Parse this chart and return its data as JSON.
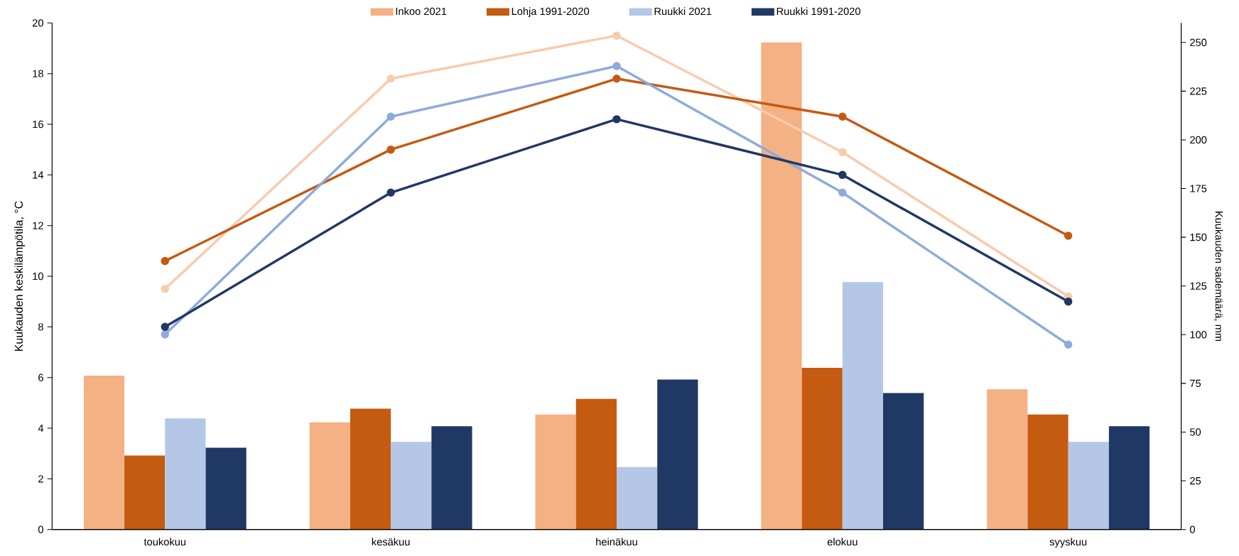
{
  "chart_data": {
    "type": "bar",
    "categories": [
      "toukokuu",
      "kesäkuu",
      "heinäkuu",
      "elokuu",
      "syyskuu"
    ],
    "ylabel": "Kuukauden keskilämpötila, °C",
    "y2label": "Kuukauden sademäärä, mm",
    "ylim": [
      0,
      20
    ],
    "yticks": [
      0,
      2,
      4,
      6,
      8,
      10,
      12,
      14,
      16,
      18,
      20
    ],
    "y2lim": [
      0,
      260
    ],
    "y2ticks": [
      0,
      25,
      50,
      75,
      100,
      125,
      150,
      175,
      200,
      225,
      250
    ],
    "legend": "top",
    "marker": "circle",
    "series": [
      {
        "name": "Inkoo 2021",
        "color": "#f4b183",
        "axis": "y2",
        "values": [
          79,
          55,
          59,
          250,
          72
        ]
      },
      {
        "name": "Lohja 1991-2020",
        "color": "#c55a11",
        "axis": "y2",
        "values": [
          38,
          62,
          67,
          83,
          59
        ]
      },
      {
        "name": "Ruukki 2021",
        "color": "#b4c7e7",
        "axis": "y2",
        "values": [
          57,
          45,
          32,
          127,
          45
        ]
      },
      {
        "name": "Ruukki 1991-2020",
        "color": "#203864",
        "axis": "y2",
        "values": [
          42,
          53,
          77,
          70,
          53
        ]
      },
      {
        "type": "line",
        "color": "#f8cbad",
        "values": [
          9.5,
          17.8,
          19.5,
          14.9,
          9.2
        ]
      },
      {
        "type": "line",
        "color": "#c55a11",
        "values": [
          10.6,
          15.0,
          17.8,
          16.3,
          11.6
        ]
      },
      {
        "type": "line",
        "color": "#8faadc",
        "values": [
          7.7,
          16.3,
          18.3,
          13.3,
          7.3
        ]
      },
      {
        "type": "line",
        "color": "#203864",
        "values": [
          8.0,
          13.3,
          16.2,
          14.0,
          9.0
        ]
      }
    ]
  }
}
